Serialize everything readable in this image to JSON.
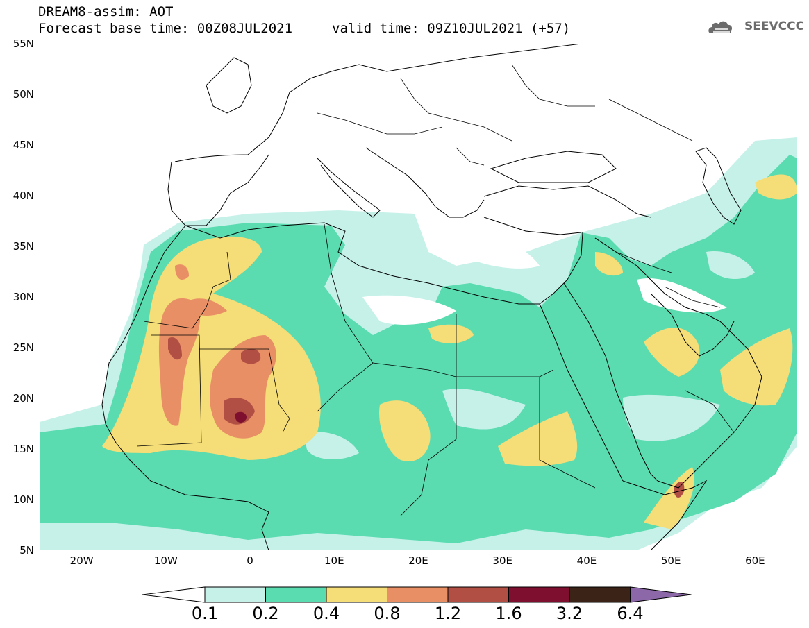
{
  "header": {
    "title": "DREAM8-assim: AOT",
    "base_time": "Forecast base time: 00Z08JUL2021",
    "valid_time": "valid time: 09Z10JUL2021 (+57)"
  },
  "logo": {
    "text": "SEEVCCC",
    "icon": "cloud-icon",
    "color": "#6b6b6b"
  },
  "map": {
    "lon_range": [
      -25,
      65
    ],
    "lat_range": [
      5,
      55
    ],
    "lat_labels": [
      "55N",
      "50N",
      "45N",
      "40N",
      "35N",
      "30N",
      "25N",
      "20N",
      "15N",
      "10N",
      "5N"
    ],
    "lon_labels": [
      "20W",
      "10W",
      "0",
      "10E",
      "20E",
      "30E",
      "40E",
      "50E",
      "60E"
    ]
  },
  "colorbar": {
    "levels": [
      "0.1",
      "0.2",
      "0.4",
      "0.8",
      "1.2",
      "1.6",
      "3.2",
      "6.4"
    ],
    "colors": [
      "#ffffff",
      "#c6f1e9",
      "#5bdbb0",
      "#f5dd77",
      "#e88f66",
      "#b14f45",
      "#7f0f2f",
      "#3b2417",
      "#8c68a8"
    ]
  }
}
